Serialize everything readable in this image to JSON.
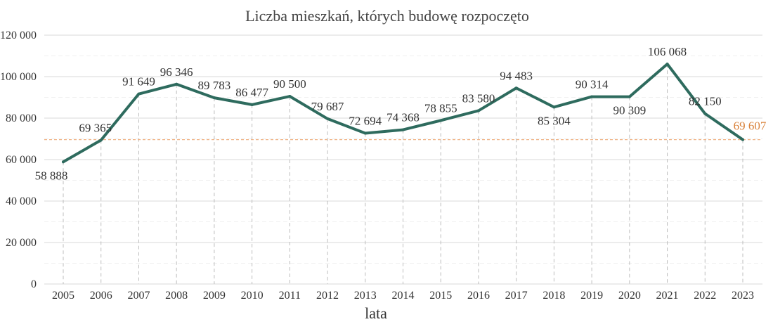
{
  "chart_data": {
    "type": "line",
    "title": "Liczba mieszkań, których budowę rozpoczęto",
    "xlabel": "lata",
    "ylabel": "",
    "ylim": [
      0,
      120000
    ],
    "yticks": [
      "0",
      "20 000",
      "40 000",
      "60 000",
      "80 000",
      "100 000",
      "120 000"
    ],
    "ytick_values": [
      0,
      20000,
      40000,
      60000,
      80000,
      100000,
      120000
    ],
    "categories": [
      "2005",
      "2006",
      "2007",
      "2008",
      "2009",
      "2010",
      "2011",
      "2012",
      "2013",
      "2014",
      "2015",
      "2016",
      "2017",
      "2018",
      "2019",
      "2020",
      "2021",
      "2022",
      "2023"
    ],
    "series": [
      {
        "values": [
          58888,
          69365,
          91649,
          96346,
          89783,
          86477,
          90500,
          79687,
          72694,
          74368,
          78855,
          83580,
          94483,
          85304,
          90314,
          90309,
          106068,
          82150,
          69607
        ],
        "labels": [
          "58 888",
          "69 365",
          "91 649",
          "96 346",
          "89 783",
          "86 477",
          "90 500",
          "79 687",
          "72 694",
          "74 368",
          "78 855",
          "83 580",
          "94 483",
          "85 304",
          "90 314",
          "90 309",
          "106 068",
          "82 150",
          "69 607"
        ]
      }
    ],
    "reference_line": {
      "value": 69607
    },
    "grid": true,
    "colors": {
      "line": "#2e6b5e",
      "highlight": "#d9823b",
      "reference": "#f0b488",
      "grid": "#e6e6e6",
      "drop": "#bdbdbd",
      "text": "#333333"
    }
  }
}
